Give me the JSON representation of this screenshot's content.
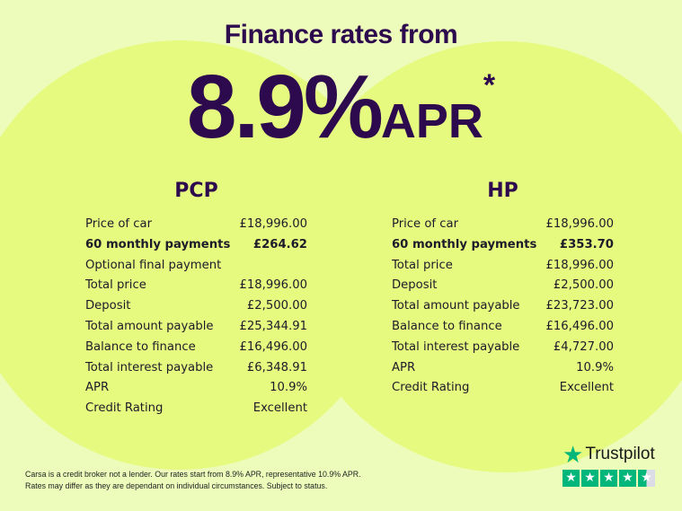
{
  "header": {
    "title": "Finance rates from",
    "rate": "8.9%",
    "apr": "APR",
    "asterisk": "*"
  },
  "pcp": {
    "heading": "PCP",
    "rows": [
      {
        "label": "Price of car",
        "value": "£18,996.00",
        "bold": false
      },
      {
        "label": "60 monthly payments",
        "value": "£264.62",
        "bold": true
      },
      {
        "label": "Optional final payment",
        "value": "",
        "bold": false
      },
      {
        "label": "Total price",
        "value": "£18,996.00",
        "bold": false
      },
      {
        "label": "Deposit",
        "value": "£2,500.00",
        "bold": false
      },
      {
        "label": "Total amount payable",
        "value": "£25,344.91",
        "bold": false
      },
      {
        "label": "Balance to finance",
        "value": "£16,496.00",
        "bold": false
      },
      {
        "label": "Total interest payable",
        "value": "£6,348.91",
        "bold": false
      },
      {
        "label": "APR",
        "value": "10.9%",
        "bold": false
      },
      {
        "label": "Credit Rating",
        "value": "Excellent",
        "bold": false
      }
    ]
  },
  "hp": {
    "heading": "HP",
    "rows": [
      {
        "label": "Price of car",
        "value": "£18,996.00",
        "bold": false
      },
      {
        "label": "60 monthly payments",
        "value": "£353.70",
        "bold": true
      },
      {
        "label": "Total price",
        "value": "£18,996.00",
        "bold": false
      },
      {
        "label": "Deposit",
        "value": "£2,500.00",
        "bold": false
      },
      {
        "label": "Total amount payable",
        "value": "£23,723.00",
        "bold": false
      },
      {
        "label": "Balance to finance",
        "value": "£16,496.00",
        "bold": false
      },
      {
        "label": "Total interest payable",
        "value": "£4,727.00",
        "bold": false
      },
      {
        "label": "APR",
        "value": "10.9%",
        "bold": false
      },
      {
        "label": "Credit Rating",
        "value": "Excellent",
        "bold": false
      }
    ]
  },
  "disclaimer": {
    "line1": "Carsa is a credit broker not a lender. Our rates start from 8.9% APR, representative 10.9% APR.",
    "line2": "Rates may differ as they are dependant on individual circumstances. Subject to status."
  },
  "trustpilot": {
    "name": "Trustpilot",
    "rating_stars": 4.5,
    "max_stars": 5,
    "icon": "star-icon"
  },
  "colors": {
    "background": "#eefcbb",
    "circle": "#e5fa7f",
    "heading": "#2d0a4e",
    "trustpilot": "#00b67a"
  }
}
